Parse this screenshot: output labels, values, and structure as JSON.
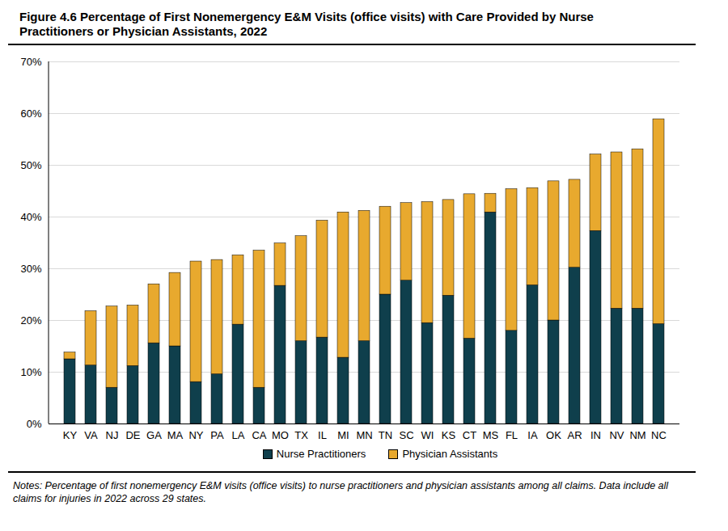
{
  "chart_data": {
    "type": "bar",
    "title": "Figure 4.6  Percentage of First Nonemergency E&M Visits (office visits) with Care Provided by Nurse Practitioners or Physician Assistants, 2022",
    "categories": [
      "KY",
      "VA",
      "NJ",
      "DE",
      "GA",
      "MA",
      "NY",
      "PA",
      "LA",
      "CA",
      "MO",
      "TX",
      "IL",
      "MI",
      "MN",
      "TN",
      "SC",
      "WI",
      "KS",
      "CT",
      "MS",
      "FL",
      "IA",
      "OK",
      "AR",
      "IN",
      "NV",
      "NM",
      "NC"
    ],
    "series": [
      {
        "name": "Nurse Practitioners",
        "color": "#0f3f4c",
        "values": [
          12.5,
          11.3,
          7.0,
          11.2,
          15.6,
          15.0,
          8.1,
          9.6,
          19.2,
          7.0,
          26.7,
          16.0,
          16.7,
          12.8,
          16.0,
          25.0,
          27.7,
          19.5,
          24.8,
          16.5,
          40.9,
          18.0,
          26.8,
          20.0,
          30.2,
          37.3,
          22.3,
          22.3,
          19.3
        ]
      },
      {
        "name": "Physician Assistants",
        "color": "#e8a92e",
        "values": [
          1.3,
          10.5,
          15.7,
          11.7,
          11.4,
          14.2,
          23.3,
          22.1,
          13.4,
          26.5,
          8.2,
          20.3,
          22.6,
          28.1,
          25.2,
          17.0,
          15.0,
          23.4,
          18.5,
          27.9,
          3.6,
          27.4,
          18.8,
          26.9,
          17.0,
          14.8,
          30.2,
          30.8,
          39.6
        ]
      }
    ],
    "ylim": [
      0,
      70
    ],
    "yticks": [
      {
        "value": 0,
        "label": "0%"
      },
      {
        "value": 10,
        "label": "10%"
      },
      {
        "value": 20,
        "label": "20%"
      },
      {
        "value": 30,
        "label": "30%"
      },
      {
        "value": 40,
        "label": "40%"
      },
      {
        "value": 50,
        "label": "50%"
      },
      {
        "value": 60,
        "label": "60%"
      },
      {
        "value": 70,
        "label": "70%"
      }
    ],
    "grid": true,
    "stacked": true,
    "legend": "bottom",
    "notes": "Notes: Percentage of first nonemergency E&M visits (office visits) to nurse practitioners and physician assistants among all claims. Data include all claims for injuries in 2022 across 29 states."
  }
}
